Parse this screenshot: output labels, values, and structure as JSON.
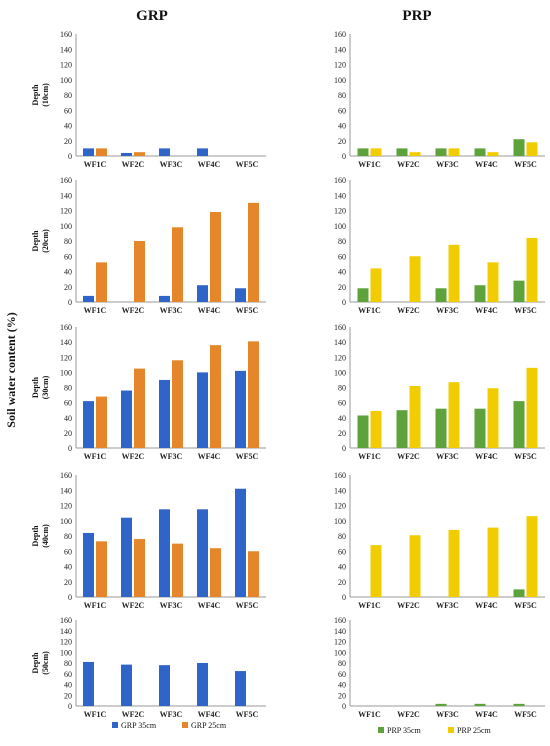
{
  "figure": {
    "columns": [
      "GRP",
      "PRP"
    ],
    "ylabel": "Soil water content (%)"
  },
  "colors": {
    "grp35": "#2f64c8",
    "grp25": "#e5862a",
    "prp35": "#5ea23c",
    "prp25": "#f0cc00",
    "axis": "#9a9a9a"
  },
  "chart_data": [
    {
      "type": "bar",
      "group": "GRP",
      "row_label": [
        "Depth",
        "(10cm)"
      ],
      "categories": [
        "WF1C",
        "WF2C",
        "WF3C",
        "WF4C",
        "WF5C"
      ],
      "ylim": [
        0,
        160
      ],
      "yticks": [
        0,
        20,
        40,
        60,
        80,
        100,
        120,
        140,
        160
      ],
      "series": [
        {
          "name": "GRP 35cm",
          "values": [
            10,
            4,
            10,
            10,
            0
          ]
        },
        {
          "name": "GRP 25cm",
          "values": [
            10,
            5,
            0,
            0,
            0
          ]
        }
      ]
    },
    {
      "type": "bar",
      "group": "PRP",
      "row_label": [],
      "categories": [
        "WF1C",
        "WF2C",
        "WF3C",
        "WF4C",
        "WF5C"
      ],
      "ylim": [
        0,
        160
      ],
      "yticks": [
        0,
        20,
        40,
        60,
        80,
        100,
        120,
        140,
        160
      ],
      "series": [
        {
          "name": "PRP 35cm",
          "values": [
            10,
            10,
            10,
            10,
            22
          ]
        },
        {
          "name": "PRP 25cm",
          "values": [
            10,
            5,
            10,
            5,
            18
          ]
        }
      ]
    },
    {
      "type": "bar",
      "group": "GRP",
      "row_label": [
        "Depth",
        "(20cm)"
      ],
      "categories": [
        "WF1C",
        "WF2C",
        "WF3C",
        "WF4C",
        "WF5C"
      ],
      "ylim": [
        0,
        160
      ],
      "yticks": [
        0,
        20,
        40,
        60,
        80,
        100,
        120,
        140,
        160
      ],
      "series": [
        {
          "name": "GRP 35cm",
          "values": [
            8,
            0,
            8,
            22,
            18
          ]
        },
        {
          "name": "GRP 25cm",
          "values": [
            52,
            80,
            98,
            118,
            130
          ]
        }
      ]
    },
    {
      "type": "bar",
      "group": "PRP",
      "row_label": [],
      "categories": [
        "WF1C",
        "WF2C",
        "WF3C",
        "WF4C",
        "WF5C"
      ],
      "ylim": [
        0,
        160
      ],
      "yticks": [
        0,
        20,
        40,
        60,
        80,
        100,
        120,
        140,
        160
      ],
      "series": [
        {
          "name": "PRP 35cm",
          "values": [
            18,
            0,
            18,
            22,
            28
          ]
        },
        {
          "name": "PRP 25cm",
          "values": [
            44,
            60,
            75,
            52,
            84
          ]
        }
      ]
    },
    {
      "type": "bar",
      "group": "GRP",
      "row_label": [
        "Depth",
        "(30cm)"
      ],
      "categories": [
        "WF1C",
        "WF2C",
        "WF3C",
        "WF4C",
        "WF5C"
      ],
      "ylim": [
        0,
        160
      ],
      "yticks": [
        0,
        20,
        40,
        60,
        80,
        100,
        120,
        140,
        160
      ],
      "series": [
        {
          "name": "GRP 35cm",
          "values": [
            62,
            76,
            90,
            100,
            102
          ]
        },
        {
          "name": "GRP 25cm",
          "values": [
            68,
            105,
            116,
            136,
            141
          ]
        }
      ]
    },
    {
      "type": "bar",
      "group": "PRP",
      "row_label": [],
      "categories": [
        "WF1C",
        "WF2C",
        "WF3C",
        "WF4C",
        "WF5C"
      ],
      "ylim": [
        0,
        160
      ],
      "yticks": [
        0,
        20,
        40,
        60,
        80,
        100,
        120,
        140,
        160
      ],
      "series": [
        {
          "name": "PRP 35cm",
          "values": [
            43,
            50,
            52,
            52,
            62
          ]
        },
        {
          "name": "PRP 25cm",
          "values": [
            49,
            82,
            87,
            79,
            106
          ]
        }
      ]
    },
    {
      "type": "bar",
      "group": "GRP",
      "row_label": [
        "Depth",
        "(40cm)"
      ],
      "categories": [
        "WF1C",
        "WF2C",
        "WF3C",
        "WF4C",
        "WF5C"
      ],
      "ylim": [
        0,
        160
      ],
      "yticks": [
        0,
        20,
        40,
        60,
        80,
        100,
        120,
        140,
        160
      ],
      "series": [
        {
          "name": "GRP 35cm",
          "values": [
            84,
            104,
            115,
            115,
            142
          ]
        },
        {
          "name": "GRP 25cm",
          "values": [
            73,
            76,
            70,
            64,
            60
          ]
        }
      ]
    },
    {
      "type": "bar",
      "group": "PRP",
      "row_label": [],
      "categories": [
        "WF1C",
        "WF2C",
        "WF3C",
        "WF4C",
        "WF5C"
      ],
      "ylim": [
        0,
        160
      ],
      "yticks": [
        0,
        20,
        40,
        60,
        80,
        100,
        120,
        140,
        160
      ],
      "series": [
        {
          "name": "PRP 35cm",
          "values": [
            0,
            0,
            0,
            0,
            10
          ]
        },
        {
          "name": "PRP 25cm",
          "values": [
            68,
            81,
            88,
            91,
            106
          ]
        }
      ]
    },
    {
      "type": "bar",
      "group": "GRP",
      "row_label": [
        "Depth",
        "(50cm)"
      ],
      "categories": [
        "WF1C",
        "WF2C",
        "WF3C",
        "WF4C",
        "WF5C"
      ],
      "ylim": [
        0,
        160
      ],
      "yticks": [
        0,
        20,
        40,
        60,
        80,
        100,
        120,
        140,
        160
      ],
      "series": [
        {
          "name": "GRP 35cm",
          "values": [
            82,
            77,
            76,
            80,
            65
          ]
        },
        {
          "name": "GRP 25cm",
          "values": [
            0,
            0,
            0,
            0,
            0
          ]
        }
      ]
    },
    {
      "type": "bar",
      "group": "PRP",
      "row_label": [],
      "categories": [
        "WF1C",
        "WF2C",
        "WF3C",
        "WF4C",
        "WF5C"
      ],
      "ylim": [
        0,
        160
      ],
      "yticks": [
        0,
        20,
        40,
        60,
        80,
        100,
        120,
        140,
        160
      ],
      "series": [
        {
          "name": "PRP 35cm",
          "values": [
            0,
            0,
            4,
            4,
            4
          ]
        },
        {
          "name": "PRP 25cm",
          "values": [
            0,
            0,
            0,
            0,
            0
          ]
        }
      ]
    }
  ],
  "legends": [
    {
      "group": "GRP",
      "items": [
        {
          "label": "GRP 35cm",
          "color_key": "grp35"
        },
        {
          "label": "GRP 25cm",
          "color_key": "grp25"
        }
      ]
    },
    {
      "group": "PRP",
      "items": [
        {
          "label": "PRP  35cm",
          "color_key": "prp35"
        },
        {
          "label": "PRP 25cm",
          "color_key": "prp25"
        }
      ]
    }
  ]
}
